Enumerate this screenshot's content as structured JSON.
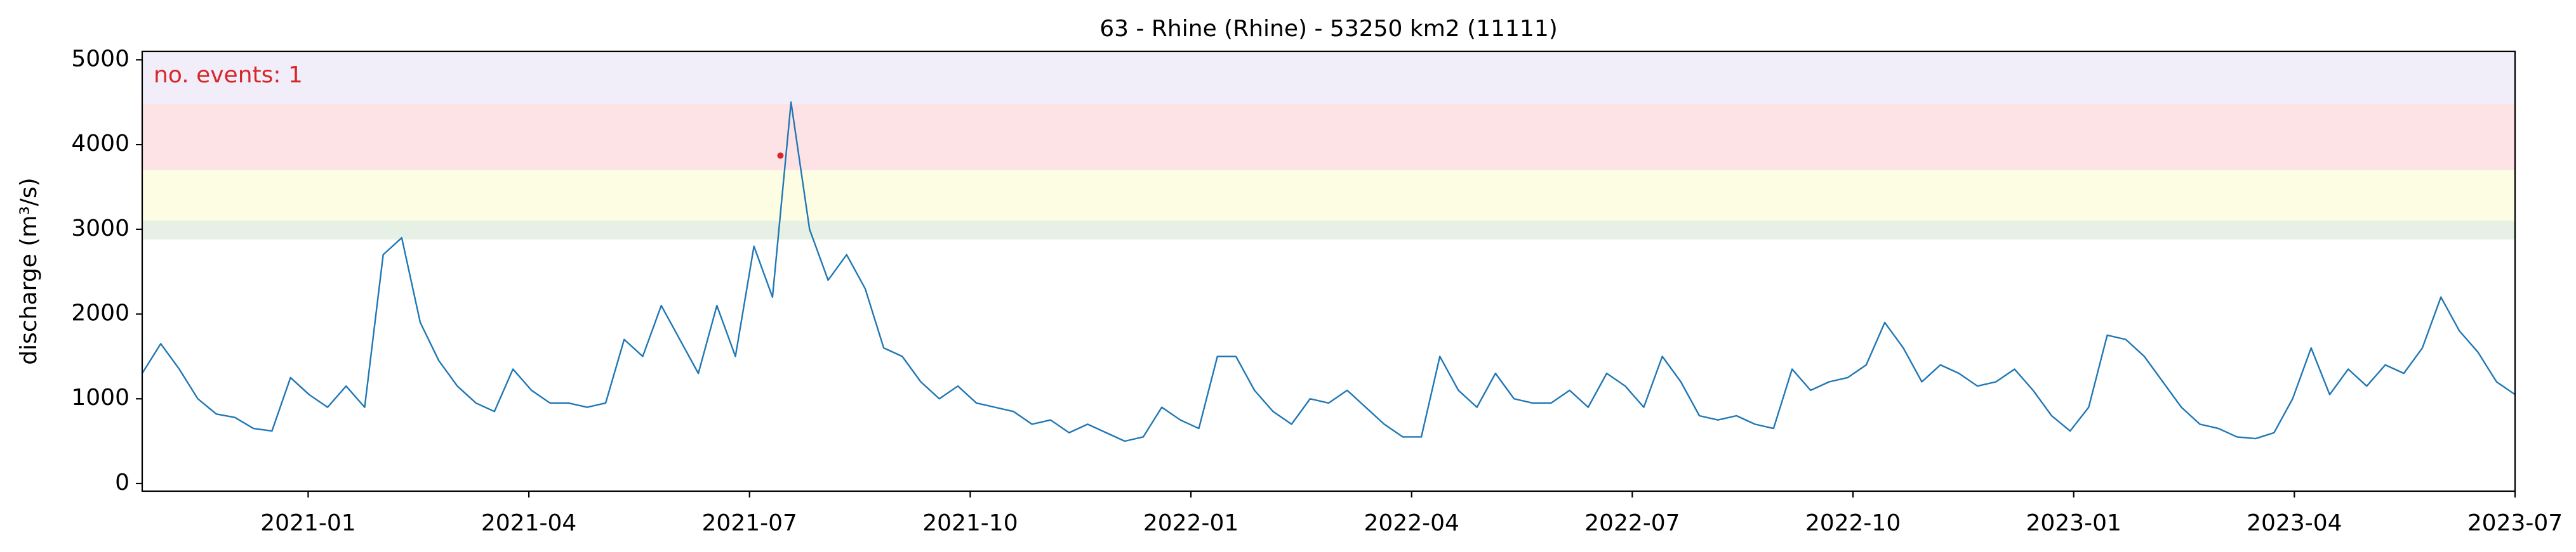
{
  "chart_data": {
    "type": "line",
    "title": "63 - Rhine (Rhine) - 53250 km2 (11111)",
    "y_label": "discharge (m³/s)",
    "annotation": "no. events: 1",
    "color": "#1f77b4",
    "x": [
      2020.812,
      2020.833,
      2020.854,
      2020.875,
      2020.896,
      2020.917,
      2020.938,
      2020.959,
      2020.98,
      2021.001,
      2021.022,
      2021.043,
      2021.064,
      2021.085,
      2021.106,
      2021.127,
      2021.148,
      2021.169,
      2021.19,
      2021.211,
      2021.232,
      2021.253,
      2021.274,
      2021.295,
      2021.316,
      2021.337,
      2021.358,
      2021.379,
      2021.4,
      2021.421,
      2021.442,
      2021.463,
      2021.484,
      2021.505,
      2021.526,
      2021.547,
      2021.568,
      2021.589,
      2021.61,
      2021.631,
      2021.652,
      2021.673,
      2021.694,
      2021.715,
      2021.736,
      2021.757,
      2021.778,
      2021.799,
      2021.82,
      2021.841,
      2021.862,
      2021.883,
      2021.904,
      2021.925,
      2021.946,
      2021.967,
      2021.988,
      2022.009,
      2022.03,
      2022.051,
      2022.072,
      2022.093,
      2022.114,
      2022.135,
      2022.156,
      2022.177,
      2022.198,
      2022.219,
      2022.24,
      2022.261,
      2022.282,
      2022.303,
      2022.324,
      2022.345,
      2022.366,
      2022.387,
      2022.408,
      2022.429,
      2022.45,
      2022.471,
      2022.492,
      2022.513,
      2022.534,
      2022.555,
      2022.576,
      2022.597,
      2022.618,
      2022.639,
      2022.66,
      2022.681,
      2022.702,
      2022.723,
      2022.744,
      2022.765,
      2022.786,
      2022.807,
      2022.828,
      2022.849,
      2022.87,
      2022.891,
      2022.912,
      2022.933,
      2022.954,
      2022.975,
      2022.996,
      2023.017,
      2023.038,
      2023.059,
      2023.08,
      2023.101,
      2023.122,
      2023.143,
      2023.164,
      2023.185,
      2023.206,
      2023.227,
      2023.248,
      2023.269,
      2023.29,
      2023.311,
      2023.332,
      2023.353,
      2023.374,
      2023.395,
      2023.416,
      2023.437,
      2023.458,
      2023.479,
      2023.5
    ],
    "values": [
      1300,
      1650,
      1350,
      1000,
      820,
      780,
      650,
      620,
      1250,
      1050,
      900,
      1150,
      900,
      2700,
      2900,
      1900,
      1450,
      1150,
      950,
      850,
      1350,
      1100,
      950,
      950,
      900,
      950,
      1700,
      1500,
      2100,
      1700,
      1300,
      2100,
      1500,
      2800,
      2200,
      4500,
      3000,
      2400,
      2700,
      2300,
      1600,
      1500,
      1200,
      1000,
      1150,
      950,
      900,
      850,
      700,
      750,
      600,
      700,
      600,
      500,
      550,
      900,
      750,
      650,
      1500,
      1500,
      1100,
      850,
      700,
      1000,
      950,
      1100,
      900,
      700,
      550,
      550,
      1500,
      1100,
      900,
      1300,
      1000,
      950,
      950,
      1100,
      900,
      1300,
      1150,
      900,
      1500,
      1200,
      800,
      750,
      800,
      700,
      650,
      1350,
      1100,
      1200,
      1250,
      1400,
      1900,
      1600,
      1200,
      1400,
      1300,
      1150,
      1200,
      1350,
      1100,
      800,
      620,
      900,
      1750,
      1700,
      1500,
      1200,
      900,
      700,
      650,
      550,
      530,
      600,
      1000,
      1600,
      1050,
      1350,
      1150,
      1400,
      1300,
      1600,
      2200,
      1800,
      1550,
      1200,
      1050
    ],
    "events": {
      "x": [
        2021.535
      ],
      "values": [
        3870
      ],
      "color": "#d62728"
    },
    "bands": [
      {
        "from": 2880,
        "to": 3100,
        "color": "#e6f0e4"
      },
      {
        "from": 3100,
        "to": 3700,
        "color": "#fdfde3"
      },
      {
        "from": 3700,
        "to": 4480,
        "color": "#fde3e6"
      },
      {
        "from": 4480,
        "to": 5100,
        "color": "#f1eefa"
      }
    ],
    "xlim": [
      2020.812,
      2023.5
    ],
    "ylim": [
      -90,
      5100
    ],
    "xticks": [
      {
        "value": 2021.0,
        "label": "2021-01"
      },
      {
        "value": 2021.25,
        "label": "2021-04"
      },
      {
        "value": 2021.5,
        "label": "2021-07"
      },
      {
        "value": 2021.75,
        "label": "2021-10"
      },
      {
        "value": 2022.0,
        "label": "2022-01"
      },
      {
        "value": 2022.25,
        "label": "2022-04"
      },
      {
        "value": 2022.5,
        "label": "2022-07"
      },
      {
        "value": 2022.75,
        "label": "2022-10"
      },
      {
        "value": 2023.0,
        "label": "2023-01"
      },
      {
        "value": 2023.25,
        "label": "2023-04"
      },
      {
        "value": 2023.5,
        "label": "2023-07"
      }
    ],
    "yticks": [
      0,
      1000,
      2000,
      3000,
      4000,
      5000
    ]
  }
}
